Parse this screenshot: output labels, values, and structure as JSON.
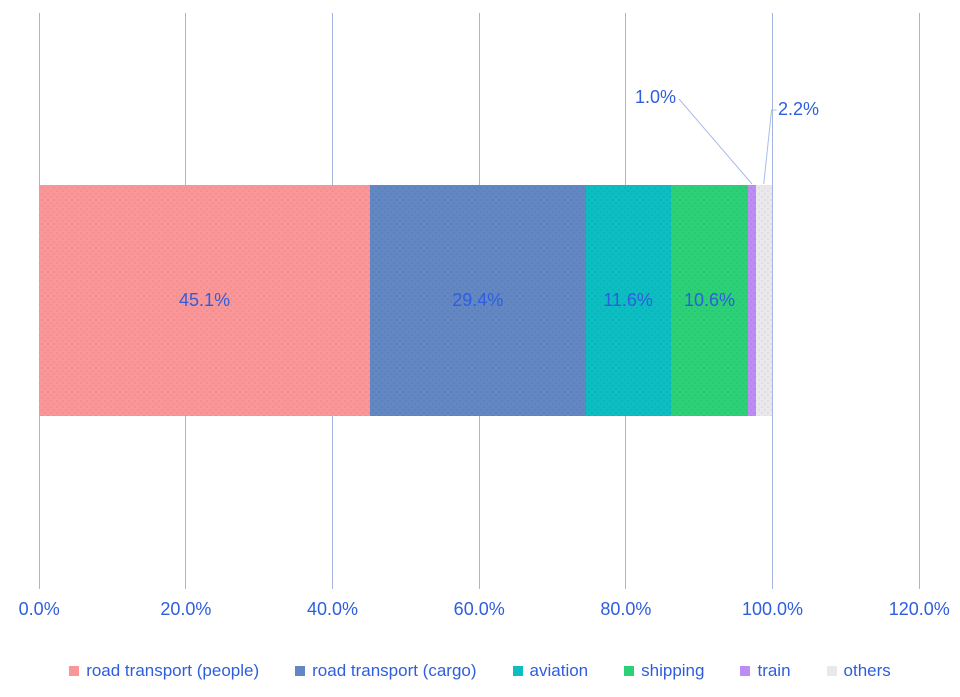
{
  "chart_data": {
    "type": "bar",
    "subtype": "horizontal-stacked-percentage",
    "title": "",
    "xlabel": "",
    "ylabel": "",
    "xlim": [
      0,
      120
    ],
    "grid": true,
    "legend_position": "bottom",
    "series": [
      {
        "name": "road transport (people)",
        "value": 45.1,
        "label": "45.1%",
        "color": "#FA9697",
        "label_placement": "inside"
      },
      {
        "name": "road transport (cargo)",
        "value": 29.4,
        "label": "29.4%",
        "color": "#6287C3",
        "label_placement": "inside"
      },
      {
        "name": "aviation",
        "value": 11.6,
        "label": "11.6%",
        "color": "#0CBEC2",
        "label_placement": "inside"
      },
      {
        "name": "shipping",
        "value": 10.6,
        "label": "10.6%",
        "color": "#2BD077",
        "label_placement": "inside"
      },
      {
        "name": "train",
        "value": 1.0,
        "label": "1.0%",
        "color": "#BD8CF5",
        "label_placement": "callout"
      },
      {
        "name": "others",
        "value": 2.2,
        "label": "2.2%",
        "color": "#EAE8EB",
        "label_placement": "callout"
      }
    ],
    "x_axis": {
      "tick_values": [
        0,
        20,
        40,
        60,
        80,
        100,
        120
      ],
      "tick_labels": [
        "0.0%",
        "20.0%",
        "40.0%",
        "60.0%",
        "80.0%",
        "100.0%",
        "120.0%"
      ]
    },
    "legend_entries": [
      "road transport (people)",
      "road transport (cargo)",
      "aviation",
      "shipping",
      "train",
      "others"
    ]
  },
  "styles": {
    "text_color": "#2E5EDD",
    "grid_color": "#A6B5DF",
    "leader_color": "#A9BCE8",
    "background": "#FFFFFF"
  }
}
